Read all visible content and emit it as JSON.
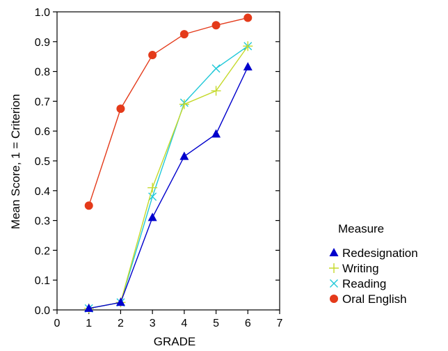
{
  "chart_data": {
    "type": "line",
    "xlabel": "GRADE",
    "ylabel": "Mean Score, 1 = Criterion",
    "xlim": [
      0,
      7
    ],
    "ylim": [
      0,
      1.0
    ],
    "x_ticks": [
      "0",
      "1",
      "2",
      "3",
      "4",
      "5",
      "6",
      "7"
    ],
    "y_ticks": [
      "0.0",
      "0.1",
      "0.2",
      "0.3",
      "0.4",
      "0.5",
      "0.6",
      "0.7",
      "0.8",
      "0.9",
      "1.0"
    ],
    "grid": false,
    "legend_title": "Measure",
    "legend_position": "right",
    "x": [
      1,
      2,
      3,
      4,
      5,
      6
    ],
    "series": [
      {
        "name": "Redesignation",
        "marker": "triangle",
        "color": "#0000cc",
        "values": [
          0.005,
          0.025,
          0.31,
          0.515,
          0.59,
          0.815
        ]
      },
      {
        "name": "Writing",
        "marker": "plus",
        "color": "#c5d92a",
        "values": [
          0.005,
          0.025,
          0.41,
          0.69,
          0.735,
          0.885
        ]
      },
      {
        "name": "Reading",
        "marker": "cross",
        "color": "#20c8d8",
        "values": [
          0.005,
          0.025,
          0.38,
          0.695,
          0.81,
          0.885
        ]
      },
      {
        "name": "Oral English",
        "marker": "circle",
        "color": "#e43a1a",
        "values": [
          0.35,
          0.675,
          0.855,
          0.925,
          0.955,
          0.98
        ]
      }
    ]
  }
}
